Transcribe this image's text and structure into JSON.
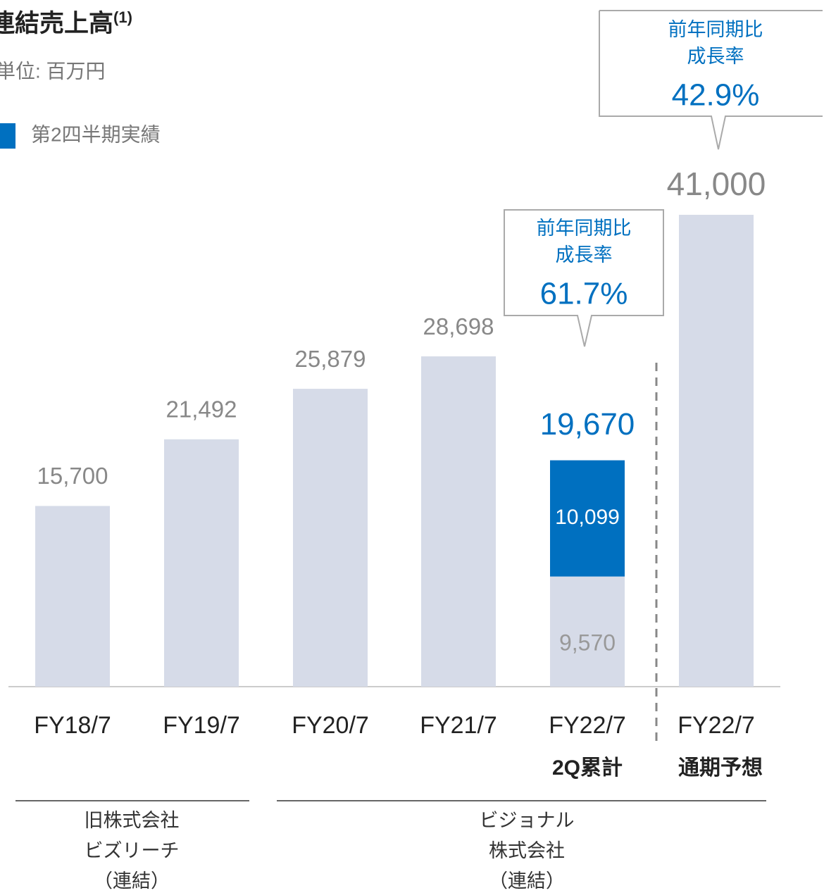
{
  "chart_data": {
    "type": "bar",
    "title": "連結売上高",
    "title_note": "(1)",
    "subtitle": "単位: 百万円",
    "categories": [
      "FY18/7",
      "FY19/7",
      "FY20/7",
      "FY21/7",
      "FY22/7",
      "FY22/7"
    ],
    "category_sublabels": [
      null,
      null,
      null,
      null,
      "2Q累計",
      "通期予想"
    ],
    "ylim": [
      0,
      41000
    ],
    "series": [
      {
        "color": "#d6dbe8",
        "values": [
          15700,
          21492,
          25879,
          28698,
          9570,
          41000
        ],
        "value_labels": [
          "15,700",
          "21,492",
          "25,879",
          "28,698",
          "9,570",
          "41,000"
        ]
      },
      {
        "name": "第2四半期実績",
        "color": "#0070c0",
        "values": [
          null,
          null,
          null,
          null,
          10099,
          null
        ],
        "value_labels": [
          null,
          null,
          null,
          null,
          "10,099",
          null
        ]
      }
    ],
    "stack_total": {
      "value": 19670,
      "label": "19,670"
    },
    "callouts": [
      {
        "lines": [
          "前年同期比",
          "成長率"
        ],
        "rate": {
          "value": 61.7,
          "label": "61.7%"
        }
      },
      {
        "lines": [
          "前年同期比",
          "成長率"
        ],
        "rate": {
          "value": 42.9,
          "label": "42.9%"
        }
      }
    ],
    "groups": [
      {
        "lines": [
          "旧株式会社",
          "ビズリーチ",
          "（連結）"
        ]
      },
      {
        "lines": [
          "ビジョナル",
          "株式会社",
          "（連結）"
        ]
      }
    ]
  }
}
